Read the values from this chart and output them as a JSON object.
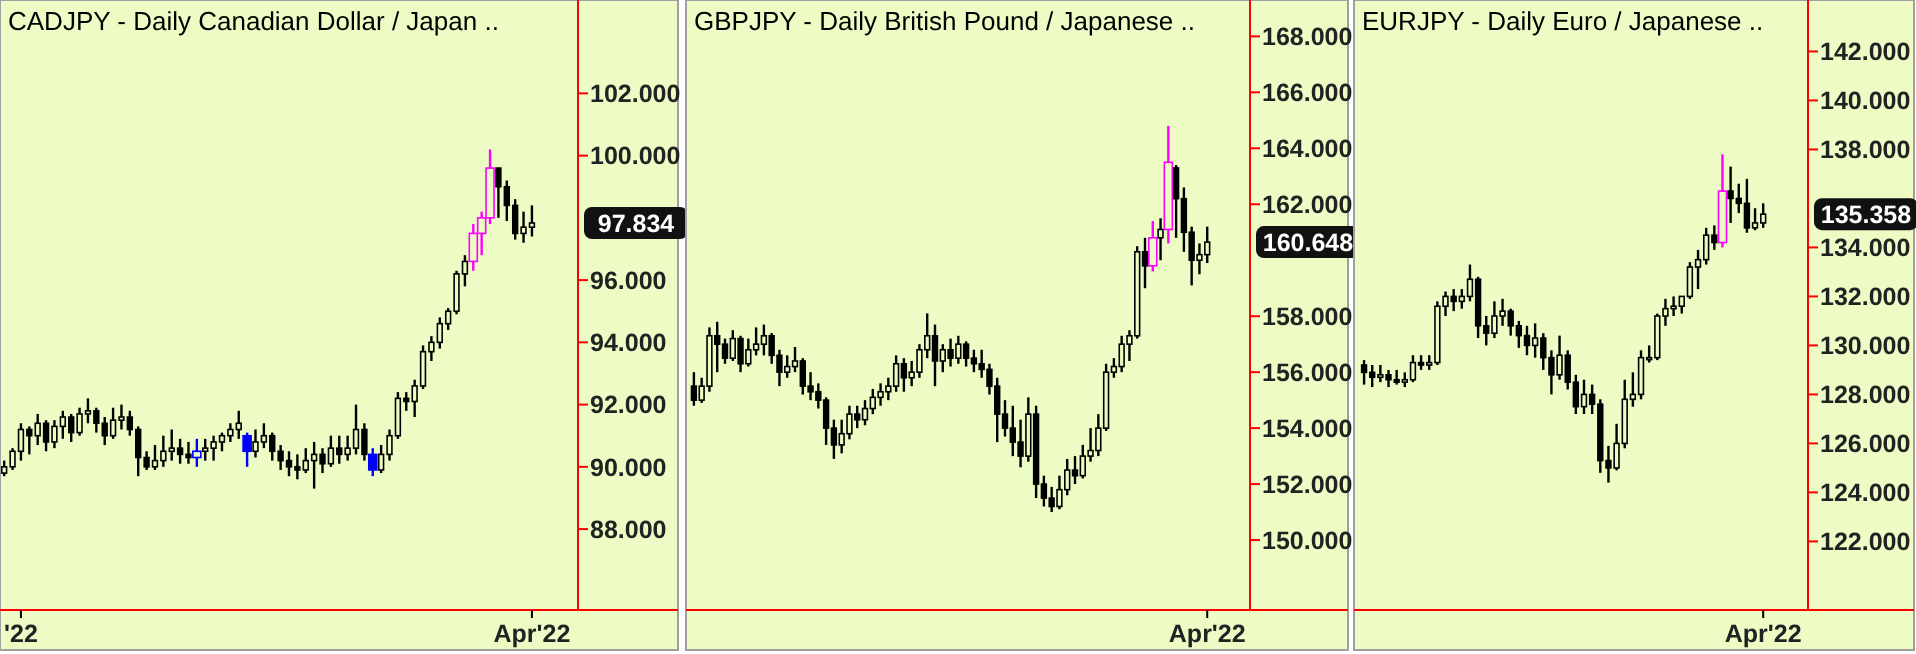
{
  "chart_data": [
    {
      "type": "candlestick",
      "title": "CADJPY - Daily  Canadian Dollar / Japan ..",
      "categories": [
        null,
        null,
        "'22",
        null,
        null,
        null,
        null,
        null,
        null,
        null,
        null,
        null,
        null,
        null,
        null,
        null,
        null,
        null,
        null,
        null,
        null,
        null,
        null,
        null,
        null,
        null,
        null,
        null,
        null,
        null,
        null,
        null,
        null,
        null,
        null,
        null,
        null,
        null,
        null,
        null,
        null,
        null,
        null,
        null,
        null,
        null,
        null,
        null,
        null,
        null,
        null,
        null,
        null,
        null,
        null,
        null,
        null,
        null,
        null,
        null,
        null,
        null,
        null,
        "Apr'22"
      ],
      "ohlc": [
        [
          89.8,
          90.2,
          89.7,
          90.0
        ],
        [
          90.0,
          90.6,
          89.9,
          90.5
        ],
        [
          90.5,
          91.4,
          90.2,
          91.2
        ],
        [
          91.2,
          91.3,
          90.4,
          91.0
        ],
        [
          91.0,
          91.7,
          90.7,
          91.4
        ],
        [
          91.4,
          91.5,
          90.5,
          90.8
        ],
        [
          90.8,
          91.5,
          90.6,
          91.3
        ],
        [
          91.3,
          91.8,
          90.9,
          91.6
        ],
        [
          91.6,
          91.7,
          90.8,
          91.1
        ],
        [
          91.1,
          91.9,
          91.0,
          91.7
        ],
        [
          91.7,
          92.2,
          91.4,
          91.8
        ],
        [
          91.8,
          91.9,
          91.1,
          91.4
        ],
        [
          91.4,
          91.6,
          90.7,
          91.0
        ],
        [
          91.0,
          91.9,
          90.9,
          91.5
        ],
        [
          91.5,
          92.0,
          91.2,
          91.6
        ],
        [
          91.6,
          91.8,
          91.0,
          91.2
        ],
        [
          91.2,
          91.3,
          89.7,
          90.3
        ],
        [
          90.3,
          90.5,
          89.9,
          90.0
        ],
        [
          90.0,
          90.7,
          89.9,
          90.2
        ],
        [
          90.2,
          91.0,
          90.0,
          90.5
        ],
        [
          90.5,
          91.2,
          90.2,
          90.6
        ],
        [
          90.6,
          90.9,
          90.1,
          90.4
        ],
        [
          90.4,
          90.8,
          90.1,
          90.3
        ],
        [
          90.3,
          90.9,
          90.0,
          90.5
        ],
        [
          90.5,
          90.9,
          90.2,
          90.6
        ],
        [
          90.6,
          91.0,
          90.2,
          90.8
        ],
        [
          90.8,
          91.1,
          90.5,
          91.0
        ],
        [
          91.0,
          91.4,
          90.8,
          91.2
        ],
        [
          91.2,
          91.8,
          90.9,
          91.4
        ],
        [
          91.0,
          91.1,
          90.0,
          90.5
        ],
        [
          90.5,
          91.2,
          90.3,
          90.8
        ],
        [
          90.8,
          91.4,
          90.6,
          91.0
        ],
        [
          91.0,
          91.1,
          90.2,
          90.5
        ],
        [
          90.5,
          90.7,
          89.9,
          90.2
        ],
        [
          90.2,
          90.5,
          89.7,
          90.0
        ],
        [
          90.0,
          90.4,
          89.6,
          89.9
        ],
        [
          89.9,
          90.6,
          89.8,
          90.2
        ],
        [
          90.2,
          90.8,
          89.3,
          90.4
        ],
        [
          90.4,
          90.6,
          89.8,
          90.1
        ],
        [
          90.1,
          91.0,
          90.0,
          90.6
        ],
        [
          90.6,
          91.0,
          90.1,
          90.4
        ],
        [
          90.4,
          91.0,
          90.2,
          90.6
        ],
        [
          90.6,
          92.0,
          90.4,
          91.2
        ],
        [
          91.2,
          91.4,
          90.2,
          90.4
        ],
        [
          90.4,
          90.6,
          89.7,
          89.9
        ],
        [
          89.9,
          90.7,
          89.8,
          90.4
        ],
        [
          90.4,
          91.2,
          90.2,
          91.0
        ],
        [
          91.0,
          92.4,
          90.9,
          92.2
        ],
        [
          92.2,
          92.4,
          91.8,
          92.1
        ],
        [
          92.1,
          92.8,
          91.6,
          92.6
        ],
        [
          92.6,
          93.9,
          92.5,
          93.7
        ],
        [
          93.7,
          94.2,
          93.4,
          94.0
        ],
        [
          94.0,
          94.8,
          93.8,
          94.6
        ],
        [
          94.6,
          95.1,
          94.4,
          95.0
        ],
        [
          95.0,
          96.3,
          94.9,
          96.2
        ],
        [
          96.2,
          96.8,
          95.8,
          96.6
        ],
        [
          96.6,
          97.8,
          96.3,
          97.5
        ],
        [
          97.5,
          98.2,
          96.8,
          98.0
        ],
        [
          98.0,
          100.2,
          97.8,
          99.6
        ],
        [
          99.6,
          99.6,
          98.0,
          99.0
        ],
        [
          99.0,
          99.2,
          97.9,
          98.4
        ],
        [
          98.4,
          98.6,
          97.3,
          97.5
        ],
        [
          97.5,
          98.2,
          97.2,
          97.7
        ],
        [
          97.7,
          98.4,
          97.4,
          97.834
        ]
      ],
      "colors": [
        "#000000",
        "#000000",
        "#000000",
        "#000000",
        "#000000",
        "#000000",
        "#000000",
        "#000000",
        "#000000",
        "#000000",
        "#000000",
        "#000000",
        "#000000",
        "#000000",
        "#000000",
        "#000000",
        "#000000",
        "#000000",
        "#000000",
        "#000000",
        "#000000",
        "#000000",
        "#000000",
        "#0000ff",
        "#000000",
        "#000000",
        "#000000",
        "#000000",
        "#000000",
        "#0000ff",
        "#000000",
        "#000000",
        "#000000",
        "#000000",
        "#000000",
        "#000000",
        "#000000",
        "#000000",
        "#000000",
        "#000000",
        "#000000",
        "#000000",
        "#000000",
        "#000000",
        "#0000ff",
        "#000000",
        "#000000",
        "#000000",
        "#000000",
        "#000000",
        "#000000",
        "#000000",
        "#000000",
        "#000000",
        "#000000",
        "#000000",
        "#ff00ff",
        "#ff00ff",
        "#ff00ff",
        "#000000",
        "#000000",
        "#000000",
        "#000000",
        "#000000"
      ],
      "ylim": [
        85.4,
        105
      ],
      "yticks": [
        {
          "value": 88,
          "label": "88.000"
        },
        {
          "value": 90,
          "label": "90.000"
        },
        {
          "value": 92,
          "label": "92.000"
        },
        {
          "value": 94,
          "label": "94.000"
        },
        {
          "value": 96,
          "label": "96.000"
        },
        {
          "value": 100,
          "label": "100.000"
        },
        {
          "value": 102,
          "label": "102.000"
        }
      ],
      "annotations": [
        "97.834"
      ]
    },
    {
      "type": "candlestick",
      "title": "GBPJPY - Daily  British Pound / Japanese ..",
      "categories": [
        null,
        null,
        null,
        null,
        null,
        null,
        null,
        null,
        null,
        null,
        null,
        null,
        null,
        null,
        null,
        null,
        null,
        null,
        null,
        null,
        null,
        null,
        null,
        null,
        null,
        null,
        null,
        null,
        null,
        null,
        null,
        null,
        null,
        null,
        null,
        null,
        null,
        null,
        null,
        null,
        null,
        null,
        null,
        null,
        null,
        null,
        null,
        null,
        null,
        null,
        null,
        null,
        null,
        null,
        null,
        null,
        null,
        null,
        null,
        null,
        null,
        null,
        null,
        null,
        null,
        null,
        "Apr'22"
      ],
      "ohlc": [
        [
          155.5,
          156.0,
          154.8,
          155.0
        ],
        [
          155.0,
          155.8,
          154.9,
          155.5
        ],
        [
          155.5,
          157.6,
          155.3,
          157.3
        ],
        [
          157.3,
          157.8,
          156.0,
          157.0
        ],
        [
          157.0,
          157.2,
          156.3,
          156.5
        ],
        [
          156.5,
          157.5,
          156.4,
          157.2
        ],
        [
          157.2,
          157.3,
          156.0,
          156.3
        ],
        [
          156.3,
          157.2,
          156.2,
          156.8
        ],
        [
          156.8,
          157.6,
          156.6,
          157.0
        ],
        [
          157.0,
          157.7,
          156.6,
          157.3
        ],
        [
          157.3,
          157.4,
          156.3,
          156.6
        ],
        [
          156.6,
          156.8,
          155.5,
          156.0
        ],
        [
          156.0,
          156.6,
          155.8,
          156.2
        ],
        [
          156.2,
          156.9,
          156.0,
          156.4
        ],
        [
          156.4,
          156.5,
          155.2,
          155.5
        ],
        [
          155.5,
          156.0,
          155.0,
          155.3
        ],
        [
          155.3,
          155.6,
          154.7,
          155.0
        ],
        [
          155.0,
          155.1,
          153.4,
          154.0
        ],
        [
          154.0,
          154.3,
          152.9,
          153.4
        ],
        [
          153.4,
          154.3,
          153.1,
          153.8
        ],
        [
          153.8,
          154.8,
          153.6,
          154.5
        ],
        [
          154.5,
          154.8,
          154.0,
          154.3
        ],
        [
          154.3,
          155.0,
          154.1,
          154.7
        ],
        [
          154.7,
          155.4,
          154.5,
          155.1
        ],
        [
          155.1,
          155.6,
          154.8,
          155.3
        ],
        [
          155.3,
          155.8,
          155.0,
          155.5
        ],
        [
          155.5,
          156.6,
          155.3,
          156.3
        ],
        [
          156.3,
          156.5,
          155.3,
          155.8
        ],
        [
          155.8,
          156.4,
          155.5,
          156.0
        ],
        [
          156.0,
          157.0,
          155.8,
          156.8
        ],
        [
          156.8,
          158.1,
          156.5,
          157.3
        ],
        [
          157.3,
          157.7,
          155.5,
          156.4
        ],
        [
          156.4,
          157.0,
          156.0,
          156.8
        ],
        [
          156.8,
          157.2,
          156.2,
          156.5
        ],
        [
          156.5,
          157.3,
          156.3,
          157.0
        ],
        [
          157.0,
          157.1,
          156.2,
          156.5
        ],
        [
          156.5,
          156.8,
          156.0,
          156.3
        ],
        [
          156.3,
          156.8,
          155.8,
          156.1
        ],
        [
          156.1,
          156.3,
          155.2,
          155.5
        ],
        [
          155.5,
          155.8,
          153.5,
          154.5
        ],
        [
          154.5,
          155.0,
          153.7,
          154.0
        ],
        [
          154.0,
          154.8,
          153.0,
          153.5
        ],
        [
          153.5,
          154.3,
          152.6,
          153.0
        ],
        [
          153.0,
          155.1,
          152.8,
          154.5
        ],
        [
          154.5,
          154.8,
          151.5,
          152.0
        ],
        [
          152.0,
          152.3,
          151.2,
          151.5
        ],
        [
          151.5,
          151.9,
          151.0,
          151.2
        ],
        [
          151.2,
          152.3,
          151.1,
          151.8
        ],
        [
          151.8,
          152.9,
          151.6,
          152.5
        ],
        [
          152.5,
          153.0,
          152.0,
          152.3
        ],
        [
          152.3,
          153.4,
          152.2,
          153.0
        ],
        [
          153.0,
          154.0,
          152.8,
          153.2
        ],
        [
          153.2,
          154.5,
          153.0,
          154.0
        ],
        [
          154.0,
          156.3,
          153.9,
          156.0
        ],
        [
          156.0,
          156.5,
          155.8,
          156.2
        ],
        [
          156.2,
          157.3,
          156.0,
          157.0
        ],
        [
          157.0,
          157.5,
          156.4,
          157.3
        ],
        [
          157.3,
          160.5,
          157.2,
          160.3
        ],
        [
          160.3,
          160.8,
          159.0,
          159.8
        ],
        [
          159.8,
          161.4,
          159.6,
          160.8
        ],
        [
          160.8,
          161.5,
          160.0,
          161.1
        ],
        [
          161.1,
          164.8,
          160.6,
          163.5
        ],
        [
          163.3,
          163.4,
          160.8,
          162.2
        ],
        [
          162.2,
          162.6,
          160.3,
          161.0
        ],
        [
          161.0,
          161.2,
          159.1,
          160.0
        ],
        [
          160.0,
          160.6,
          159.5,
          160.2
        ],
        [
          160.2,
          161.2,
          159.9,
          160.648
        ]
      ],
      "colors": [
        "#000000",
        "#000000",
        "#000000",
        "#000000",
        "#000000",
        "#000000",
        "#000000",
        "#000000",
        "#000000",
        "#000000",
        "#000000",
        "#000000",
        "#000000",
        "#000000",
        "#000000",
        "#000000",
        "#000000",
        "#000000",
        "#000000",
        "#000000",
        "#000000",
        "#000000",
        "#000000",
        "#000000",
        "#000000",
        "#000000",
        "#000000",
        "#000000",
        "#000000",
        "#000000",
        "#000000",
        "#000000",
        "#000000",
        "#000000",
        "#000000",
        "#000000",
        "#000000",
        "#000000",
        "#000000",
        "#000000",
        "#000000",
        "#000000",
        "#000000",
        "#000000",
        "#000000",
        "#000000",
        "#000000",
        "#000000",
        "#000000",
        "#000000",
        "#000000",
        "#000000",
        "#000000",
        "#000000",
        "#000000",
        "#000000",
        "#000000",
        "#000000",
        "#000000",
        "#ff00ff",
        "#000000",
        "#ff00ff",
        "#000000",
        "#000000",
        "#000000",
        "#000000",
        "#000000"
      ],
      "ylim": [
        147.5,
        169.3
      ],
      "yticks": [
        {
          "value": 150,
          "label": "150.000"
        },
        {
          "value": 152,
          "label": "152.000"
        },
        {
          "value": 154,
          "label": "154.000"
        },
        {
          "value": 156,
          "label": "156.000"
        },
        {
          "value": 158,
          "label": "158.000"
        },
        {
          "value": 162,
          "label": "162.000"
        },
        {
          "value": 164,
          "label": "164.000"
        },
        {
          "value": 166,
          "label": "166.000"
        },
        {
          "value": 168,
          "label": "168.000"
        }
      ],
      "annotations": [
        "160.648"
      ]
    },
    {
      "type": "candlestick",
      "title": "EURJPY - Daily  Euro / Japanese ..",
      "categories": [
        null,
        null,
        null,
        null,
        null,
        null,
        null,
        null,
        null,
        null,
        null,
        null,
        null,
        null,
        null,
        null,
        null,
        null,
        null,
        null,
        null,
        null,
        null,
        null,
        null,
        null,
        null,
        null,
        null,
        null,
        null,
        null,
        null,
        null,
        null,
        null,
        null,
        null,
        null,
        null,
        null,
        null,
        null,
        null,
        null,
        null,
        null,
        null,
        null,
        "Apr'22"
      ],
      "ohlc": [
        [
          129.2,
          129.4,
          128.4,
          128.9
        ],
        [
          128.9,
          129.2,
          128.3,
          128.7
        ],
        [
          128.7,
          129.2,
          128.5,
          128.8
        ],
        [
          128.8,
          129.0,
          128.3,
          128.6
        ],
        [
          128.6,
          129.0,
          128.4,
          128.5
        ],
        [
          128.5,
          128.9,
          128.3,
          128.6
        ],
        [
          128.6,
          129.6,
          128.5,
          129.3
        ],
        [
          129.3,
          129.6,
          129.0,
          129.2
        ],
        [
          129.2,
          129.6,
          129.0,
          129.3
        ],
        [
          129.3,
          131.8,
          129.2,
          131.6
        ],
        [
          131.6,
          132.2,
          131.2,
          132.0
        ],
        [
          132.0,
          132.3,
          131.4,
          131.8
        ],
        [
          131.8,
          132.3,
          131.5,
          132.0
        ],
        [
          132.0,
          133.3,
          131.8,
          132.7
        ],
        [
          132.7,
          132.8,
          130.3,
          130.8
        ],
        [
          130.8,
          131.2,
          130.0,
          130.5
        ],
        [
          130.5,
          131.8,
          130.3,
          131.2
        ],
        [
          131.2,
          131.9,
          130.8,
          131.4
        ],
        [
          131.4,
          131.5,
          130.4,
          130.8
        ],
        [
          130.8,
          131.0,
          129.9,
          130.4
        ],
        [
          130.4,
          130.8,
          129.6,
          130.0
        ],
        [
          130.0,
          130.9,
          129.5,
          130.3
        ],
        [
          130.3,
          130.5,
          129.0,
          129.5
        ],
        [
          129.5,
          129.8,
          128.0,
          128.8
        ],
        [
          128.8,
          130.4,
          128.6,
          129.6
        ],
        [
          129.6,
          129.8,
          128.2,
          128.5
        ],
        [
          128.5,
          128.8,
          127.2,
          127.5
        ],
        [
          127.5,
          128.6,
          127.2,
          128.0
        ],
        [
          128.0,
          128.4,
          127.2,
          127.6
        ],
        [
          127.6,
          127.8,
          124.8,
          125.3
        ],
        [
          125.3,
          125.9,
          124.4,
          125.0
        ],
        [
          125.0,
          126.8,
          124.9,
          126.0
        ],
        [
          126.0,
          128.6,
          125.8,
          127.8
        ],
        [
          127.8,
          128.9,
          127.5,
          128.0
        ],
        [
          128.0,
          129.8,
          127.8,
          129.5
        ],
        [
          129.5,
          130.0,
          129.3,
          129.5
        ],
        [
          129.5,
          131.3,
          129.4,
          131.2
        ],
        [
          131.2,
          131.9,
          130.8,
          131.5
        ],
        [
          131.5,
          132.0,
          131.2,
          131.6
        ],
        [
          131.6,
          132.0,
          131.3,
          132.0
        ],
        [
          132.0,
          133.4,
          131.9,
          133.2
        ],
        [
          133.2,
          133.9,
          132.3,
          133.5
        ],
        [
          133.5,
          134.8,
          133.3,
          134.5
        ],
        [
          134.5,
          134.9,
          133.9,
          134.2
        ],
        [
          134.2,
          137.8,
          134.0,
          136.3
        ],
        [
          136.3,
          137.3,
          135.0,
          136.0
        ],
        [
          136.0,
          136.6,
          135.4,
          135.8
        ],
        [
          135.8,
          136.8,
          134.6,
          134.8
        ],
        [
          134.8,
          135.6,
          134.7,
          135.0
        ],
        [
          135.0,
          135.8,
          134.8,
          135.358
        ]
      ],
      "colors": [
        "#000000",
        "#000000",
        "#000000",
        "#000000",
        "#000000",
        "#000000",
        "#000000",
        "#000000",
        "#000000",
        "#000000",
        "#000000",
        "#000000",
        "#000000",
        "#000000",
        "#000000",
        "#000000",
        "#000000",
        "#000000",
        "#000000",
        "#000000",
        "#000000",
        "#000000",
        "#000000",
        "#000000",
        "#000000",
        "#000000",
        "#000000",
        "#000000",
        "#000000",
        "#000000",
        "#000000",
        "#000000",
        "#000000",
        "#000000",
        "#000000",
        "#000000",
        "#000000",
        "#000000",
        "#000000",
        "#000000",
        "#000000",
        "#000000",
        "#000000",
        "#000000",
        "#ff00ff",
        "#000000",
        "#000000",
        "#000000",
        "#000000",
        "#000000"
      ],
      "ylim": [
        119.2,
        144.1
      ],
      "yticks": [
        {
          "value": 122,
          "label": "122.000"
        },
        {
          "value": 124,
          "label": "124.000"
        },
        {
          "value": 126,
          "label": "126.000"
        },
        {
          "value": 128,
          "label": "128.000"
        },
        {
          "value": 130,
          "label": "130.000"
        },
        {
          "value": 132,
          "label": "132.000"
        },
        {
          "value": 134,
          "label": "134.000"
        },
        {
          "value": 138,
          "label": "138.000"
        },
        {
          "value": 140,
          "label": "140.000"
        },
        {
          "value": 142,
          "label": "142.000"
        }
      ],
      "annotations": [
        "135.358"
      ]
    }
  ]
}
